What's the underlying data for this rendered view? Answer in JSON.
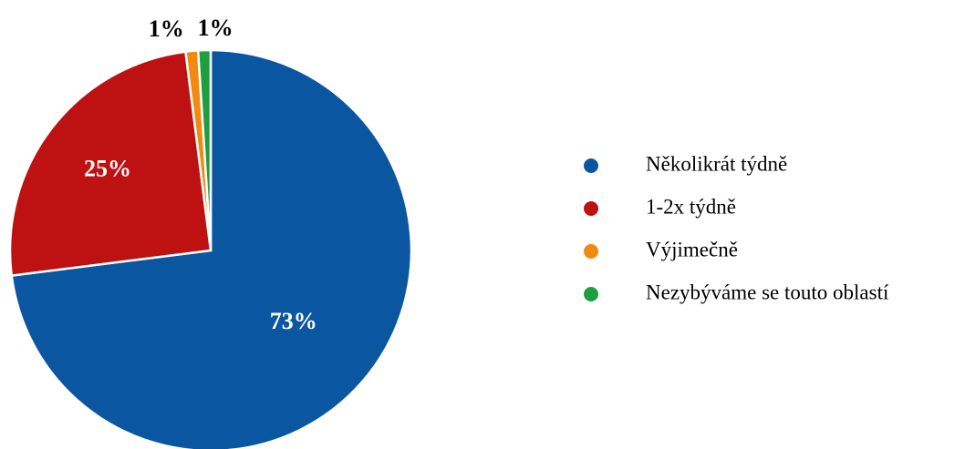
{
  "chart_data": {
    "type": "pie",
    "title": "",
    "categories": [
      "Několikrát týdně",
      "1-2x týdně",
      "Výjimečně",
      "Nezybýváme se touto oblastí"
    ],
    "values": [
      73,
      25,
      1,
      1
    ],
    "value_labels": [
      "73%",
      "25%",
      "1%",
      "1%"
    ],
    "colors": [
      "#0b56a0",
      "#be1111",
      "#f28a0f",
      "#1f9e3e"
    ],
    "label_colors": [
      "#ffffff",
      "#ffffff",
      "#000000",
      "#000000"
    ],
    "legend": {
      "placement": "right",
      "entries": [
        "Několikrát týdně",
        "1-2x týdně",
        "Výjimečně",
        "Nezybýváme se touto oblastí"
      ]
    }
  }
}
